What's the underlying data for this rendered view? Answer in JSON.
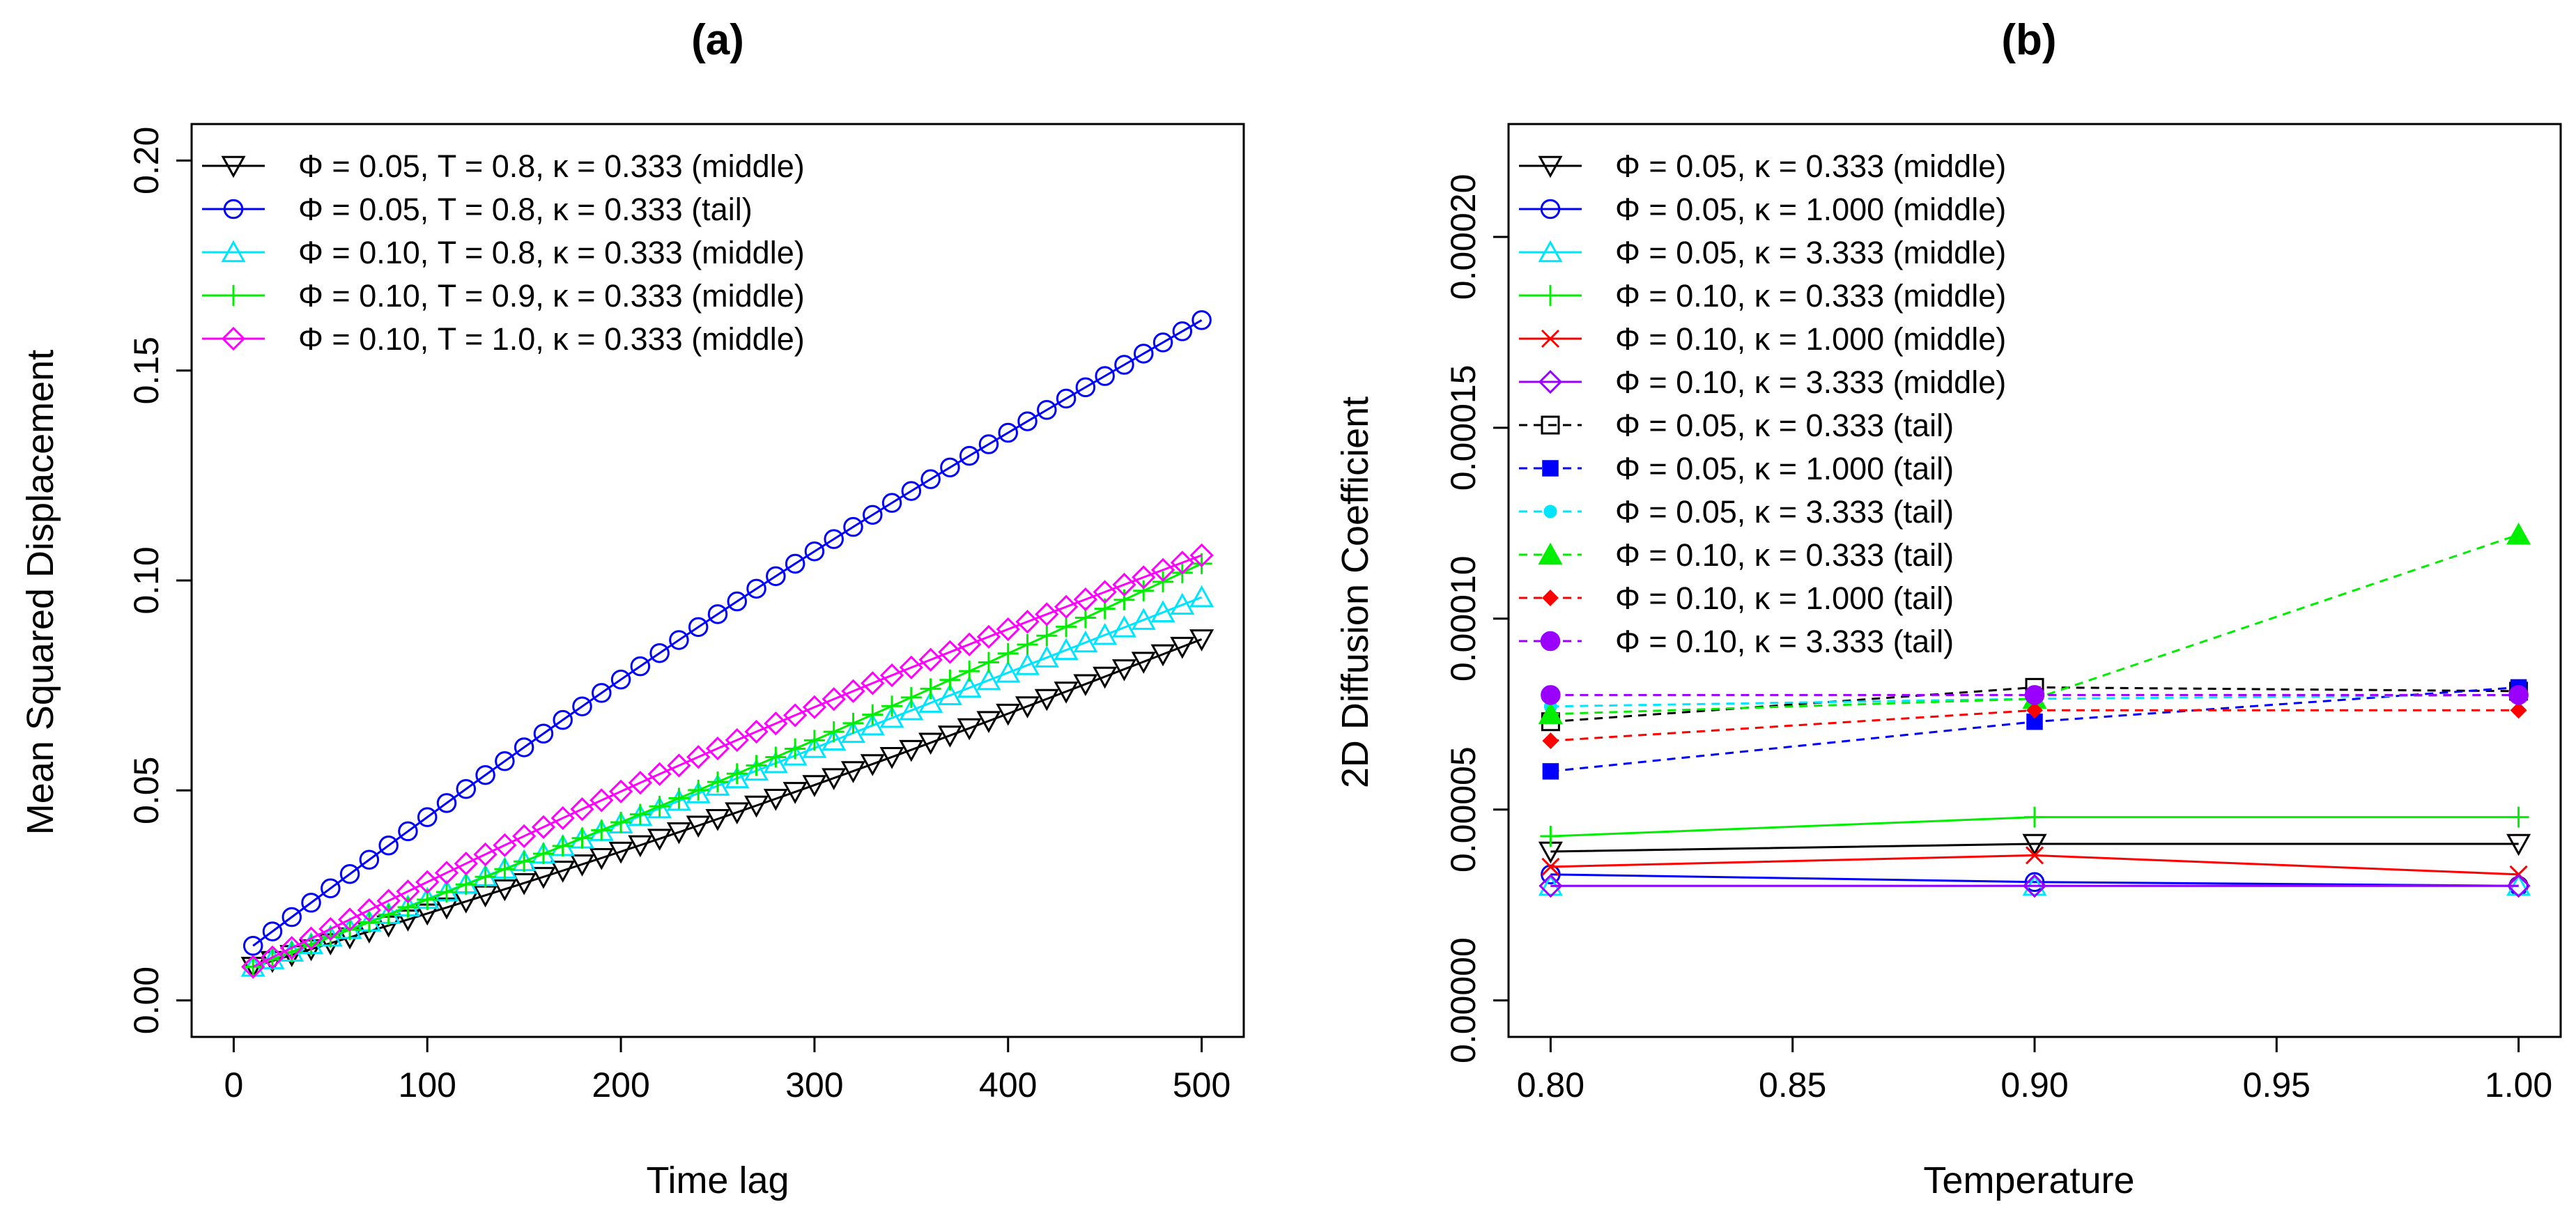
{
  "chart_data": [
    {
      "type": "line",
      "title": "(a)",
      "xlabel": "Time lag",
      "ylabel": "Mean Squared Displacement",
      "xlim": [
        0,
        500
      ],
      "ylim": [
        0,
        0.2
      ],
      "xticks": [
        0,
        100,
        200,
        300,
        400,
        500
      ],
      "xtick_labels": [
        "0",
        "100",
        "200",
        "300",
        "400",
        "500"
      ],
      "yticks": [
        0,
        0.05,
        0.1,
        0.15,
        0.2
      ],
      "ytick_labels": [
        "0.00",
        "0.05",
        "0.10",
        "0.15",
        "0.20"
      ],
      "legend_position": "top-left",
      "x_start": 10,
      "x_step": 10,
      "x_count": 50,
      "series": [
        {
          "name": "Φ = 0.05, T = 0.8, κ = 0.333 (middle)",
          "color": "#000000",
          "marker": "triangle-down",
          "line": "solid",
          "y_start": 0.008,
          "y_end": 0.086,
          "curve": -0.003
        },
        {
          "name": "Φ = 0.05, T = 0.8, κ = 0.333 (tail)",
          "color": "#0000ff",
          "marker": "circle",
          "line": "solid",
          "y_start": 0.013,
          "y_end": 0.162,
          "curve": 0.006
        },
        {
          "name": "Φ = 0.10, T = 0.8, κ = 0.333 (middle)",
          "color": "#00e5ff",
          "marker": "triangle-up",
          "line": "solid",
          "y_start": 0.008,
          "y_end": 0.096,
          "curve": 0.0
        },
        {
          "name": "Φ = 0.10, T = 0.9, κ = 0.333 (middle)",
          "color": "#00ee00",
          "marker": "plus",
          "line": "solid",
          "y_start": 0.008,
          "y_end": 0.104,
          "curve": -0.003
        },
        {
          "name": "Φ = 0.10, T = 1.0, κ = 0.333 (middle)",
          "color": "#ff00ff",
          "marker": "diamond",
          "line": "solid",
          "y_start": 0.008,
          "y_end": 0.106,
          "curve": 0.004
        }
      ]
    },
    {
      "type": "line",
      "title": "(b)",
      "xlabel": "Temperature",
      "ylabel": "2D Diffusion Coefficient",
      "xlim": [
        0.8,
        1.0
      ],
      "ylim": [
        0,
        0.00022
      ],
      "xticks": [
        0.8,
        0.85,
        0.9,
        0.95,
        1.0
      ],
      "xtick_labels": [
        "0.80",
        "0.85",
        "0.90",
        "0.95",
        "1.00"
      ],
      "yticks": [
        0,
        5e-05,
        0.0001,
        0.00015,
        0.0002
      ],
      "ytick_labels": [
        "0.00000",
        "0.00005",
        "0.00010",
        "0.00015",
        "0.00020"
      ],
      "legend_position": "top-left",
      "x": [
        0.8,
        0.9,
        1.0
      ],
      "series": [
        {
          "name": "Φ = 0.05, κ = 0.333 (middle)",
          "color": "#000000",
          "marker": "triangle-down",
          "line": "solid",
          "values": [
            3.9e-05,
            4.1e-05,
            4.1e-05
          ]
        },
        {
          "name": "Φ = 0.05, κ = 1.000 (middle)",
          "color": "#0000ff",
          "marker": "circle",
          "line": "solid",
          "values": [
            3.3e-05,
            3.1e-05,
            3e-05
          ]
        },
        {
          "name": "Φ = 0.05, κ = 3.333 (middle)",
          "color": "#00e5ff",
          "marker": "triangle-up",
          "line": "solid",
          "values": [
            3e-05,
            3e-05,
            3e-05
          ]
        },
        {
          "name": "Φ = 0.10, κ = 0.333 (middle)",
          "color": "#00ee00",
          "marker": "plus",
          "line": "solid",
          "values": [
            4.3e-05,
            4.8e-05,
            4.8e-05
          ]
        },
        {
          "name": "Φ = 0.10, κ = 1.000 (middle)",
          "color": "#ff0000",
          "marker": "cross",
          "line": "solid",
          "values": [
            3.5e-05,
            3.8e-05,
            3.3e-05
          ]
        },
        {
          "name": "Φ = 0.10, κ = 3.333 (middle)",
          "color": "#9900ff",
          "marker": "diamond",
          "line": "solid",
          "values": [
            3e-05,
            3e-05,
            3e-05
          ]
        },
        {
          "name": "Φ = 0.05, κ = 0.333 (tail)",
          "color": "#000000",
          "marker": "square-open",
          "line": "dashed",
          "values": [
            7.3e-05,
            8.2e-05,
            8.1e-05
          ]
        },
        {
          "name": "Φ = 0.05, κ = 1.000 (tail)",
          "color": "#0000ff",
          "marker": "square",
          "line": "dashed",
          "values": [
            6e-05,
            7.3e-05,
            8.2e-05
          ]
        },
        {
          "name": "Φ = 0.05, κ = 3.333 (tail)",
          "color": "#00e5ff",
          "marker": "dot",
          "line": "dashed",
          "values": [
            7.7e-05,
            7.9e-05,
            8e-05
          ]
        },
        {
          "name": "Φ = 0.10, κ = 0.333 (tail)",
          "color": "#00ee00",
          "marker": "triangle-filled",
          "line": "dashed",
          "values": [
            7.5e-05,
            7.9e-05,
            0.000122
          ]
        },
        {
          "name": "Φ = 0.10, κ = 1.000 (tail)",
          "color": "#ff0000",
          "marker": "diamond-filled",
          "line": "dashed",
          "values": [
            6.8e-05,
            7.6e-05,
            7.6e-05
          ]
        },
        {
          "name": "Φ = 0.10, κ = 3.333 (tail)",
          "color": "#9900ff",
          "marker": "circle-filled",
          "line": "dashed",
          "values": [
            8e-05,
            8e-05,
            8e-05
          ]
        }
      ]
    }
  ]
}
